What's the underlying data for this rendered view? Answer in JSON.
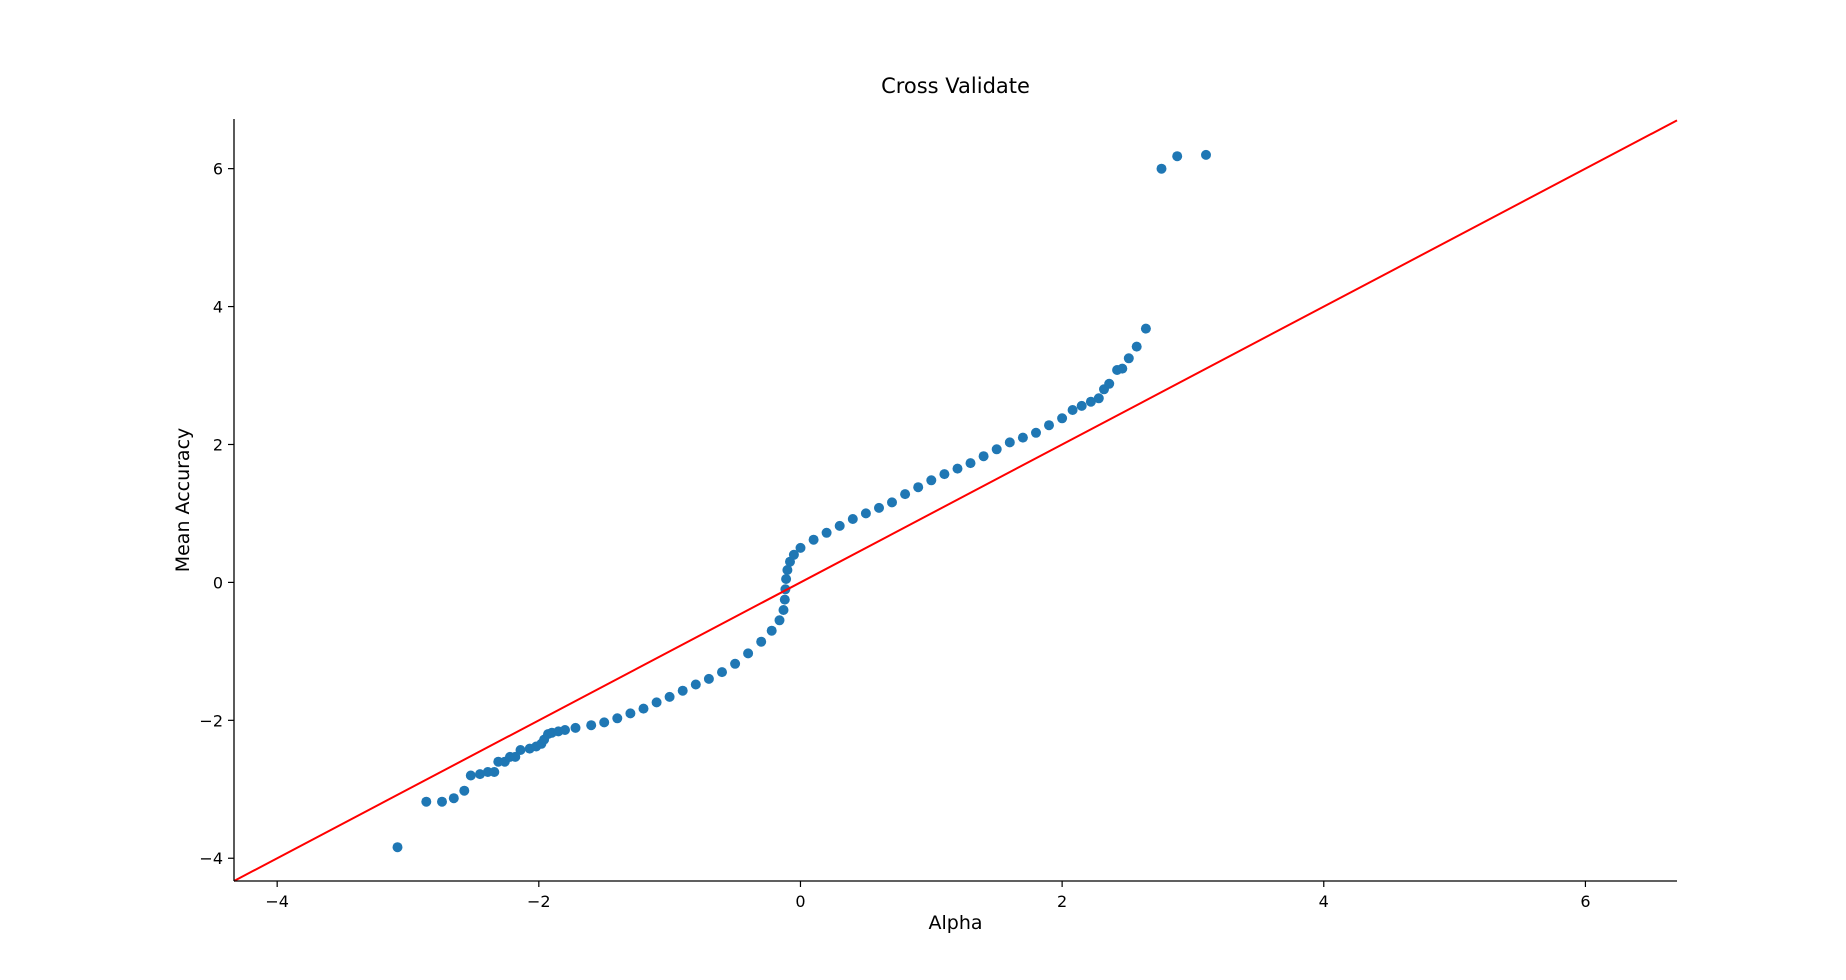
{
  "chart_data": {
    "type": "scatter",
    "title": "Cross Validate",
    "xlabel": "Alpha",
    "ylabel": "Mean Accuracy",
    "xlim": [
      -4.33,
      6.7
    ],
    "ylim": [
      -4.33,
      6.72
    ],
    "x_ticks": [
      -4,
      -2,
      0,
      2,
      4,
      6
    ],
    "x_tick_labels": [
      "−4",
      "−2",
      "0",
      "2",
      "4",
      "6"
    ],
    "y_ticks": [
      -4,
      -2,
      0,
      2,
      4,
      6
    ],
    "y_tick_labels": [
      "−4",
      "−2",
      "0",
      "2",
      "4",
      "6"
    ],
    "grid": false,
    "colors": {
      "points": "#1f77b4",
      "reference_line": "#ff0000"
    },
    "reference_line": {
      "slope": 1,
      "intercept": 0
    },
    "series": [
      {
        "points": [
          [
            -3.08,
            -3.84
          ],
          [
            -2.86,
            -3.18
          ],
          [
            -2.74,
            -3.18
          ],
          [
            -2.65,
            -3.13
          ],
          [
            -2.57,
            -3.02
          ],
          [
            -2.52,
            -2.8
          ],
          [
            -2.45,
            -2.78
          ],
          [
            -2.39,
            -2.75
          ],
          [
            -2.34,
            -2.75
          ],
          [
            -2.31,
            -2.6
          ],
          [
            -2.26,
            -2.6
          ],
          [
            -2.22,
            -2.53
          ],
          [
            -2.18,
            -2.53
          ],
          [
            -2.14,
            -2.43
          ],
          [
            -2.07,
            -2.41
          ],
          [
            -2.02,
            -2.38
          ],
          [
            -1.98,
            -2.34
          ],
          [
            -1.96,
            -2.28
          ],
          [
            -1.93,
            -2.2
          ],
          [
            -1.9,
            -2.18
          ],
          [
            -1.85,
            -2.16
          ],
          [
            -1.8,
            -2.14
          ],
          [
            -1.72,
            -2.11
          ],
          [
            -1.6,
            -2.07
          ],
          [
            -1.5,
            -2.03
          ],
          [
            -1.4,
            -1.97
          ],
          [
            -1.3,
            -1.9
          ],
          [
            -1.2,
            -1.83
          ],
          [
            -1.1,
            -1.74
          ],
          [
            -1.0,
            -1.66
          ],
          [
            -0.9,
            -1.57
          ],
          [
            -0.8,
            -1.48
          ],
          [
            -0.7,
            -1.4
          ],
          [
            -0.6,
            -1.3
          ],
          [
            -0.5,
            -1.18
          ],
          [
            -0.4,
            -1.03
          ],
          [
            -0.3,
            -0.86
          ],
          [
            -0.22,
            -0.7
          ],
          [
            -0.16,
            -0.55
          ],
          [
            -0.13,
            -0.4
          ],
          [
            -0.12,
            -0.25
          ],
          [
            -0.115,
            -0.1
          ],
          [
            -0.11,
            0.05
          ],
          [
            -0.1,
            0.18
          ],
          [
            -0.08,
            0.3
          ],
          [
            -0.05,
            0.4
          ],
          [
            0.0,
            0.5
          ],
          [
            0.1,
            0.62
          ],
          [
            0.2,
            0.72
          ],
          [
            0.3,
            0.82
          ],
          [
            0.4,
            0.92
          ],
          [
            0.5,
            1.0
          ],
          [
            0.6,
            1.08
          ],
          [
            0.7,
            1.16
          ],
          [
            0.8,
            1.28
          ],
          [
            0.9,
            1.38
          ],
          [
            1.0,
            1.48
          ],
          [
            1.1,
            1.57
          ],
          [
            1.2,
            1.65
          ],
          [
            1.3,
            1.73
          ],
          [
            1.4,
            1.83
          ],
          [
            1.5,
            1.93
          ],
          [
            1.6,
            2.03
          ],
          [
            1.7,
            2.1
          ],
          [
            1.8,
            2.17
          ],
          [
            1.9,
            2.28
          ],
          [
            2.0,
            2.38
          ],
          [
            2.08,
            2.5
          ],
          [
            2.15,
            2.56
          ],
          [
            2.22,
            2.62
          ],
          [
            2.28,
            2.67
          ],
          [
            2.32,
            2.8
          ],
          [
            2.36,
            2.88
          ],
          [
            2.42,
            3.08
          ],
          [
            2.46,
            3.1
          ],
          [
            2.51,
            3.25
          ],
          [
            2.57,
            3.42
          ],
          [
            2.64,
            3.68
          ],
          [
            2.76,
            6.0
          ],
          [
            2.88,
            6.18
          ],
          [
            3.1,
            6.2
          ]
        ]
      }
    ]
  }
}
